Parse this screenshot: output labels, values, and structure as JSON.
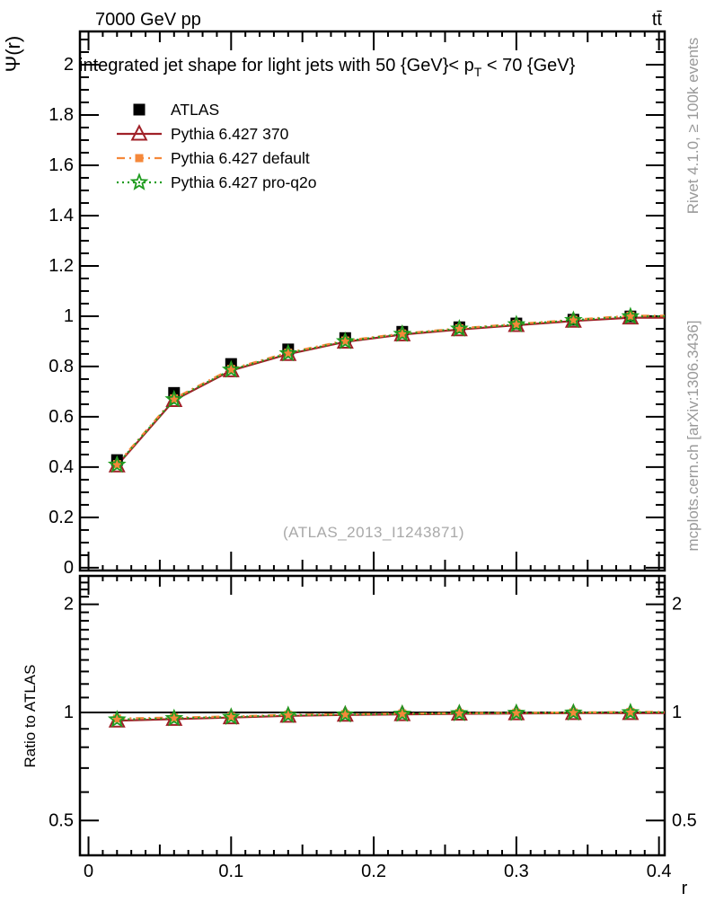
{
  "header": {
    "left": "7000 GeV pp",
    "right": "tt̄"
  },
  "top_panel": {
    "ylabel": "Ψ(r)",
    "title_pre": "integrated jet shape for light jets with 50 {GeV}< p",
    "title_sub": "T",
    "title_post": " < 70 {GeV}",
    "watermark": "(ATLAS_2013_I1243871)"
  },
  "ratio_panel": {
    "ylabel": "Ratio to ATLAS"
  },
  "right_margin": {
    "top": "Rivet 4.1.0, ≥ 100k events",
    "bottom": "mcplots.cern.ch [arXiv:1306.3436]"
  },
  "xlabel": "r",
  "colors": {
    "black": "#000000",
    "red": "#a02128",
    "orange": "#f5883a",
    "green": "#209c20",
    "gray_text": "#999999",
    "watermark": "#a9a9a9"
  },
  "chart_data": [
    {
      "type": "line",
      "title": "integrated jet shape for light jets with 50 {GeV}< p_T < 70 {GeV}",
      "ylabel": "Ψ(r)",
      "xlabel": "r",
      "xlim": [
        -0.006,
        0.404
      ],
      "ylim": [
        -0.011,
        2.132
      ],
      "legend_position": "top-left",
      "grid": false,
      "x": [
        0.02,
        0.06,
        0.1,
        0.14,
        0.18,
        0.22,
        0.26,
        0.3,
        0.34,
        0.38
      ],
      "series": [
        {
          "name": "ATLAS",
          "color": "#000000",
          "line": "none",
          "marker": "square-filled",
          "marker_size": 13,
          "values": [
            0.428,
            0.695,
            0.81,
            0.868,
            0.913,
            0.938,
            0.956,
            0.971,
            0.986,
            0.999
          ]
        },
        {
          "name": "Pythia 6.427 370",
          "color": "#a02128",
          "line": "solid",
          "marker": "triangle-open",
          "marker_size": 14,
          "values": [
            0.406,
            0.666,
            0.784,
            0.849,
            0.898,
            0.927,
            0.947,
            0.964,
            0.981,
            0.994
          ]
        },
        {
          "name": "Pythia 6.427 default",
          "color": "#f5883a",
          "line": "dashdot",
          "marker": "square-filled",
          "marker_size": 9,
          "values": [
            0.412,
            0.673,
            0.79,
            0.855,
            0.903,
            0.931,
            0.952,
            0.969,
            0.986,
            1.002
          ]
        },
        {
          "name": "Pythia 6.427 pro-q2o",
          "color": "#209c20",
          "line": "dotted",
          "marker": "star-open",
          "marker_size": 15,
          "values": [
            0.409,
            0.669,
            0.787,
            0.852,
            0.9,
            0.929,
            0.95,
            0.967,
            0.984,
            0.999
          ]
        }
      ],
      "yticks_major": [
        [
          0,
          "0"
        ],
        [
          0.2,
          "0.2"
        ],
        [
          0.4,
          "0.4"
        ],
        [
          0.6,
          "0.6"
        ],
        [
          0.8,
          "0.8"
        ],
        [
          1,
          "1"
        ],
        [
          1.2,
          "1.2"
        ],
        [
          1.4,
          "1.4"
        ],
        [
          1.6,
          "1.6"
        ],
        [
          1.8,
          "1.8"
        ],
        [
          2,
          "2"
        ]
      ],
      "yticks_minor_step": 0.05,
      "xticks_major": [
        [
          0,
          "0"
        ],
        [
          0.1,
          "0.1"
        ],
        [
          0.2,
          "0.2"
        ],
        [
          0.3,
          "0.3"
        ],
        [
          0.4,
          "0.4"
        ]
      ],
      "xticks_medium_step": 0.05,
      "xticks_minor_step": 0.01
    },
    {
      "type": "line",
      "title": "ratio of MC to data",
      "ylabel": "Ratio to ATLAS",
      "yscale": "log",
      "xlim": [
        -0.006,
        0.404
      ],
      "ylim": [
        0.4,
        2.4
      ],
      "reference_line": 1,
      "x": [
        0.02,
        0.06,
        0.1,
        0.14,
        0.18,
        0.22,
        0.26,
        0.3,
        0.34,
        0.38
      ],
      "series": [
        {
          "name": "Pythia 6.427 370",
          "color": "#a02128",
          "line": "solid",
          "marker": "triangle-open",
          "marker_size": 14,
          "values": [
            0.948,
            0.958,
            0.968,
            0.978,
            0.984,
            0.988,
            0.991,
            0.993,
            0.995,
            0.995
          ]
        },
        {
          "name": "Pythia 6.427 default",
          "color": "#f5883a",
          "line": "dashdot",
          "marker": "square-filled",
          "marker_size": 9,
          "values": [
            0.962,
            0.968,
            0.975,
            0.985,
            0.989,
            0.993,
            0.996,
            0.998,
            1.0,
            1.003
          ]
        },
        {
          "name": "Pythia 6.427 pro-q2o",
          "color": "#209c20",
          "line": "dotted",
          "marker": "star-open",
          "marker_size": 15,
          "values": [
            0.955,
            0.963,
            0.971,
            0.982,
            0.986,
            0.99,
            0.994,
            0.996,
            0.998,
            1.0
          ]
        }
      ],
      "yticks_major": [
        [
          0.5,
          "0.5"
        ],
        [
          1,
          "1"
        ],
        [
          2,
          "2"
        ]
      ],
      "yticks_minor": [
        0.4,
        0.6,
        0.7,
        0.8,
        0.9,
        1.1,
        1.2,
        1.3,
        1.4,
        1.5,
        1.6,
        1.7,
        1.8,
        1.9,
        2.1,
        2.2,
        2.3,
        2.4
      ],
      "xticks_major": [
        [
          0,
          "0"
        ],
        [
          0.1,
          "0.1"
        ],
        [
          0.2,
          "0.2"
        ],
        [
          0.3,
          "0.3"
        ],
        [
          0.4,
          "0.4"
        ]
      ],
      "xticks_medium_step": 0.05,
      "xticks_minor_step": 0.01
    }
  ]
}
